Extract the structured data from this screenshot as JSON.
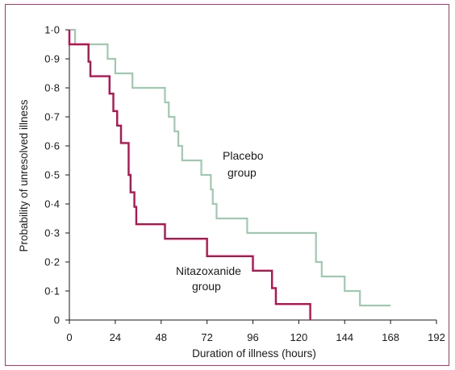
{
  "chart_data": {
    "type": "line",
    "step": true,
    "xlabel": "Duration of illness (hours)",
    "ylabel": "Probability of unresolved illness",
    "xlim": [
      0,
      192
    ],
    "ylim": [
      0,
      1
    ],
    "x_ticks": [
      "0",
      "24",
      "48",
      "72",
      "96",
      "120",
      "144",
      "168",
      "192"
    ],
    "y_ticks": [
      "0",
      "0·1",
      "0·2",
      "0·3",
      "0·4",
      "0·5",
      "0·6",
      "0·7",
      "0·8",
      "0·9",
      "1·0"
    ],
    "grid": false,
    "series": [
      {
        "name": "Placebo group",
        "label_lines": [
          "Placebo",
          "group"
        ],
        "color": "#9fc9b0",
        "points": [
          [
            0,
            1.0
          ],
          [
            3,
            1.0
          ],
          [
            3,
            0.95
          ],
          [
            20,
            0.95
          ],
          [
            20,
            0.9
          ],
          [
            24,
            0.9
          ],
          [
            24,
            0.85
          ],
          [
            33,
            0.85
          ],
          [
            33,
            0.8
          ],
          [
            50,
            0.8
          ],
          [
            50,
            0.75
          ],
          [
            52,
            0.75
          ],
          [
            52,
            0.7
          ],
          [
            55,
            0.7
          ],
          [
            55,
            0.65
          ],
          [
            57,
            0.65
          ],
          [
            57,
            0.6
          ],
          [
            59,
            0.6
          ],
          [
            59,
            0.55
          ],
          [
            69,
            0.55
          ],
          [
            69,
            0.5
          ],
          [
            74,
            0.5
          ],
          [
            74,
            0.45
          ],
          [
            75,
            0.45
          ],
          [
            75,
            0.4
          ],
          [
            77,
            0.4
          ],
          [
            77,
            0.35
          ],
          [
            93,
            0.35
          ],
          [
            93,
            0.3
          ],
          [
            129,
            0.3
          ],
          [
            129,
            0.2
          ],
          [
            132,
            0.2
          ],
          [
            132,
            0.15
          ],
          [
            144,
            0.15
          ],
          [
            144,
            0.1
          ],
          [
            152,
            0.1
          ],
          [
            152,
            0.05
          ],
          [
            168,
            0.05
          ]
        ]
      },
      {
        "name": "Nitazoxanide group",
        "label_lines": [
          "Nitazoxanide",
          "group"
        ],
        "color": "#b5124f",
        "points": [
          [
            0,
            1.0
          ],
          [
            0,
            0.95
          ],
          [
            10,
            0.95
          ],
          [
            10,
            0.89
          ],
          [
            11,
            0.89
          ],
          [
            11,
            0.84
          ],
          [
            21,
            0.84
          ],
          [
            21,
            0.78
          ],
          [
            23,
            0.78
          ],
          [
            23,
            0.72
          ],
          [
            25,
            0.72
          ],
          [
            25,
            0.67
          ],
          [
            27,
            0.67
          ],
          [
            27,
            0.61
          ],
          [
            31,
            0.61
          ],
          [
            31,
            0.5
          ],
          [
            32,
            0.5
          ],
          [
            32,
            0.44
          ],
          [
            34,
            0.44
          ],
          [
            34,
            0.39
          ],
          [
            35,
            0.39
          ],
          [
            35,
            0.33
          ],
          [
            50,
            0.33
          ],
          [
            50,
            0.28
          ],
          [
            72,
            0.28
          ],
          [
            72,
            0.22
          ],
          [
            96,
            0.22
          ],
          [
            96,
            0.17
          ],
          [
            106,
            0.17
          ],
          [
            106,
            0.11
          ],
          [
            108,
            0.11
          ],
          [
            108,
            0.055
          ],
          [
            126,
            0.055
          ],
          [
            126,
            0.0
          ]
        ]
      }
    ]
  }
}
